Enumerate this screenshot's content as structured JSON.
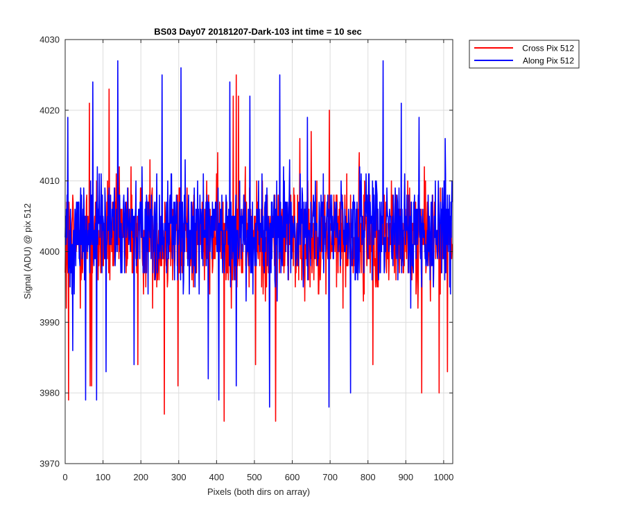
{
  "chart_data": {
    "type": "line",
    "title": "BS03 Day07 20181207-Dark-103 int time = 10 sec",
    "xlabel": "Pixels (both dirs on array)",
    "ylabel": "Signal (ADU) @ pix 512",
    "xlim": [
      0,
      1024
    ],
    "ylim": [
      3970,
      4030
    ],
    "x_ticks": [
      "0",
      "100",
      "200",
      "300",
      "400",
      "500",
      "600",
      "700",
      "800",
      "900",
      "1000"
    ],
    "y_ticks": [
      "3970",
      "3980",
      "3990",
      "4000",
      "4010",
      "4020",
      "4030"
    ],
    "grid": true,
    "legend_position": "top-right-outside",
    "noise": {
      "n_points": 1024,
      "typical_range": [
        3990,
        4010
      ]
    },
    "series": [
      {
        "name": "Cross Pix 512",
        "color": "#ff0000",
        "baseline": 4002,
        "spikes": [
          {
            "x": 3,
            "y": 3992
          },
          {
            "x": 9,
            "y": 3979
          },
          {
            "x": 40,
            "y": 3992
          },
          {
            "x": 64,
            "y": 4021
          },
          {
            "x": 66,
            "y": 3981
          },
          {
            "x": 70,
            "y": 3981
          },
          {
            "x": 116,
            "y": 4023
          },
          {
            "x": 174,
            "y": 4012
          },
          {
            "x": 192,
            "y": 3984
          },
          {
            "x": 224,
            "y": 4013
          },
          {
            "x": 262,
            "y": 3977
          },
          {
            "x": 298,
            "y": 3981
          },
          {
            "x": 420,
            "y": 3976
          },
          {
            "x": 444,
            "y": 4022
          },
          {
            "x": 452,
            "y": 4025
          },
          {
            "x": 458,
            "y": 4022
          },
          {
            "x": 503,
            "y": 3984
          },
          {
            "x": 556,
            "y": 3976
          },
          {
            "x": 620,
            "y": 4016
          },
          {
            "x": 650,
            "y": 4017
          },
          {
            "x": 698,
            "y": 4020
          },
          {
            "x": 777,
            "y": 4014
          },
          {
            "x": 813,
            "y": 3984
          },
          {
            "x": 942,
            "y": 3980
          },
          {
            "x": 988,
            "y": 3980
          },
          {
            "x": 1010,
            "y": 3983
          }
        ]
      },
      {
        "name": "Along Pix 512",
        "color": "#0000ff",
        "baseline": 4003,
        "spikes": [
          {
            "x": 7,
            "y": 4019
          },
          {
            "x": 20,
            "y": 3986
          },
          {
            "x": 54,
            "y": 3979
          },
          {
            "x": 73,
            "y": 4024
          },
          {
            "x": 83,
            "y": 3979
          },
          {
            "x": 108,
            "y": 3983
          },
          {
            "x": 139,
            "y": 4027
          },
          {
            "x": 182,
            "y": 3984
          },
          {
            "x": 256,
            "y": 4025
          },
          {
            "x": 306,
            "y": 4026
          },
          {
            "x": 378,
            "y": 3982
          },
          {
            "x": 406,
            "y": 3979
          },
          {
            "x": 435,
            "y": 4024
          },
          {
            "x": 452,
            "y": 3981
          },
          {
            "x": 488,
            "y": 4022
          },
          {
            "x": 540,
            "y": 3978
          },
          {
            "x": 567,
            "y": 4025
          },
          {
            "x": 640,
            "y": 4019
          },
          {
            "x": 697,
            "y": 3978
          },
          {
            "x": 754,
            "y": 3980
          },
          {
            "x": 840,
            "y": 4027
          },
          {
            "x": 888,
            "y": 4021
          },
          {
            "x": 935,
            "y": 4019
          },
          {
            "x": 1004,
            "y": 4016
          }
        ]
      }
    ]
  }
}
